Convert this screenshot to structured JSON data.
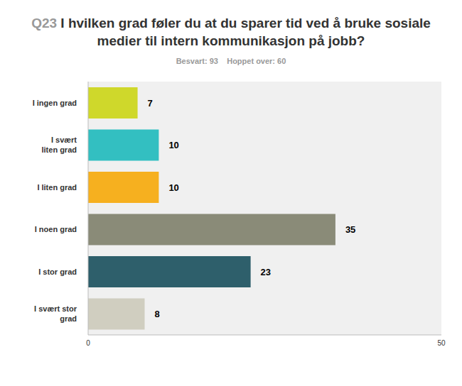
{
  "chart_data": {
    "type": "bar",
    "title": "Q23 I hvilken grad føler du at du sparer tid ved å bruke sosiale medier til intern kommunikasjon på jobb?",
    "subtitle": "Besvart: 93    Hoppet over: 60",
    "orientation": "horizontal",
    "categories": [
      "I ingen grad",
      "I svært liten grad",
      "I liten grad",
      "I noen grad",
      "I stor grad",
      "I svært stor grad"
    ],
    "values": [
      7,
      10,
      10,
      35,
      23,
      8
    ],
    "colors": [
      "#cfd82b",
      "#33bfc1",
      "#f6b01f",
      "#8a8b78",
      "#2e5f6b",
      "#d0cec0"
    ],
    "xlim": [
      0,
      50
    ],
    "xticks": [
      0,
      50
    ],
    "grid": false,
    "data_labels": true
  }
}
